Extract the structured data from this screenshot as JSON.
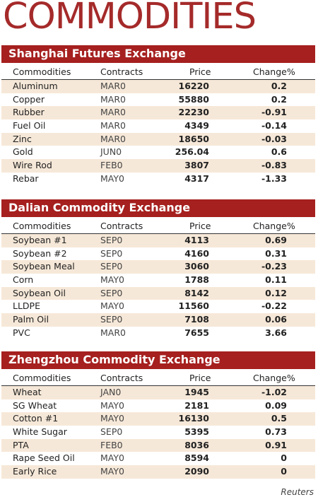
{
  "title": "COMMODITIES",
  "columns": {
    "commodity": "Commodities",
    "contract": "Contracts",
    "price": "Price",
    "change": "Change%"
  },
  "sections": [
    {
      "name": "Shanghai Futures Exchange",
      "rows": [
        {
          "commodity": "Aluminum",
          "contract": "MAR0",
          "price": "16220",
          "change": "0.2"
        },
        {
          "commodity": "Copper",
          "contract": "MAR0",
          "price": "55880",
          "change": "0.2"
        },
        {
          "commodity": "Rubber",
          "contract": "MAR0",
          "price": "22230",
          "change": "-0.91"
        },
        {
          "commodity": "Fuel Oil",
          "contract": "MAR0",
          "price": "4349",
          "change": "-0.14"
        },
        {
          "commodity": "Zinc",
          "contract": "MAR0",
          "price": "18650",
          "change": "-0.03"
        },
        {
          "commodity": "Gold",
          "contract": "JUN0",
          "price": "256.04",
          "change": "0.6"
        },
        {
          "commodity": "Wire Rod",
          "contract": "FEB0",
          "price": "3807",
          "change": "-0.83"
        },
        {
          "commodity": "Rebar",
          "contract": "MAY0",
          "price": "4317",
          "change": "-1.33"
        }
      ]
    },
    {
      "name": "Dalian Commodity Exchange",
      "rows": [
        {
          "commodity": "Soybean #1",
          "contract": "SEP0",
          "price": "4113",
          "change": "0.69"
        },
        {
          "commodity": "Soybean #2",
          "contract": "SEP0",
          "price": "4160",
          "change": "0.31"
        },
        {
          "commodity": "Soybean Meal",
          "contract": "SEP0",
          "price": "3060",
          "change": "-0.23"
        },
        {
          "commodity": "Corn",
          "contract": "MAY0",
          "price": "1788",
          "change": "0.11"
        },
        {
          "commodity": "Soybean Oil",
          "contract": "SEP0",
          "price": "8142",
          "change": "0.12"
        },
        {
          "commodity": "LLDPE",
          "contract": "MAY0",
          "price": "11560",
          "change": "-0.22"
        },
        {
          "commodity": "Palm Oil",
          "contract": "SEP0",
          "price": "7108",
          "change": "0.06"
        },
        {
          "commodity": "PVC",
          "contract": "MAR0",
          "price": "7655",
          "change": "3.66"
        }
      ]
    },
    {
      "name": "Zhengzhou Commodity Exchange",
      "rows": [
        {
          "commodity": "Wheat",
          "contract": "JAN0",
          "price": "1945",
          "change": "-1.02"
        },
        {
          "commodity": "SG Wheat",
          "contract": "MAY0",
          "price": "2181",
          "change": "0.09"
        },
        {
          "commodity": "Cotton #1",
          "contract": "MAY0",
          "price": "16130",
          "change": "0.5"
        },
        {
          "commodity": "White Sugar",
          "contract": "SEP0",
          "price": "5395",
          "change": "0.73"
        },
        {
          "commodity": "PTA",
          "contract": "FEB0",
          "price": "8036",
          "change": "0.91"
        },
        {
          "commodity": "Rape Seed Oil",
          "contract": "MAY0",
          "price": "8594",
          "change": "0"
        },
        {
          "commodity": "Early Rice",
          "contract": "MAY0",
          "price": "2090",
          "change": "0"
        }
      ]
    }
  ],
  "source": "Reuters",
  "colors": {
    "accent": "#a5201f",
    "title": "#a52a2a",
    "row_shade": "#f6e8d8"
  }
}
